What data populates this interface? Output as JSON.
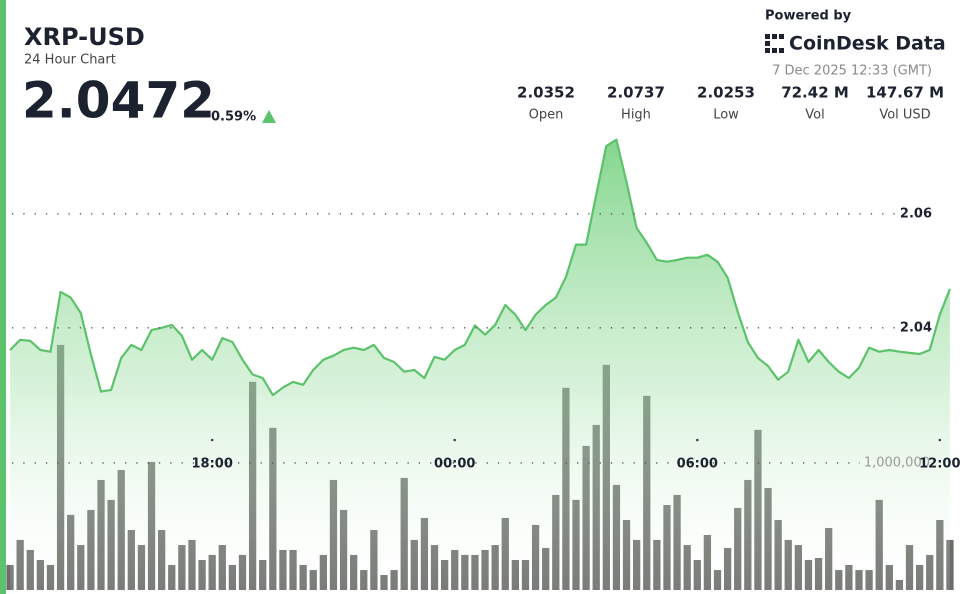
{
  "header": {
    "title": "XRP-USD",
    "subtitle": "24 Hour Chart",
    "price": "2.0472",
    "change": "0.59%",
    "powered_by": "Powered by",
    "brand": "CoinDesk Data",
    "timestamp": "7 Dec 2025 12:33 (GMT)"
  },
  "stats": [
    {
      "value": "2.0352",
      "label": "Open"
    },
    {
      "value": "2.0737",
      "label": "High"
    },
    {
      "value": "2.0253",
      "label": "Low"
    },
    {
      "value": "72.42 M",
      "label": "Vol"
    },
    {
      "value": "147.67 M",
      "label": "Vol USD"
    }
  ],
  "chart_data": {
    "type": "line",
    "categories": [
      null,
      null,
      null,
      null,
      null,
      null,
      null,
      null,
      null,
      null,
      null,
      null,
      null,
      null,
      null,
      null,
      null,
      null,
      null,
      null,
      "18:00",
      null,
      null,
      null,
      null,
      null,
      null,
      null,
      null,
      null,
      null,
      null,
      null,
      null,
      null,
      null,
      null,
      null,
      null,
      null,
      null,
      null,
      null,
      null,
      "00:00",
      null,
      null,
      null,
      null,
      null,
      null,
      null,
      null,
      null,
      null,
      null,
      null,
      null,
      null,
      null,
      null,
      null,
      null,
      null,
      null,
      null,
      null,
      null,
      "06:00",
      null,
      null,
      null,
      null,
      null,
      null,
      null,
      null,
      null,
      null,
      null,
      null,
      null,
      null,
      null,
      null,
      null,
      null,
      null,
      null,
      null,
      null,
      null,
      "12:00",
      null
    ],
    "series": [
      {
        "color": "#5cc26b",
        "values": [
          2.0361,
          2.0379,
          2.0377,
          2.0361,
          2.0358,
          2.0463,
          2.0453,
          2.0426,
          2.0353,
          2.0288,
          2.0291,
          2.0347,
          2.037,
          2.0361,
          2.0396,
          2.04,
          2.0405,
          2.0386,
          2.0344,
          2.0361,
          2.0344,
          2.0382,
          2.0375,
          2.0344,
          2.0318,
          2.0312,
          2.0282,
          2.0295,
          2.0305,
          2.03,
          2.0326,
          2.0344,
          2.0351,
          2.0361,
          2.0365,
          2.0361,
          2.037,
          2.0347,
          2.034,
          2.0323,
          2.0326,
          2.0312,
          2.0349,
          2.0344,
          2.0361,
          2.037,
          2.0404,
          2.0388,
          2.0405,
          2.044,
          2.0423,
          2.0396,
          2.0423,
          2.044,
          2.0453,
          2.0489,
          2.0546,
          2.0546,
          2.0633,
          2.0719,
          2.073,
          2.0656,
          2.0575,
          2.0549,
          2.0519,
          2.0516,
          2.0519,
          2.0523,
          2.0523,
          2.0528,
          2.0516,
          2.0488,
          2.0428,
          2.0375,
          2.0347,
          2.0333,
          2.0309,
          2.0323,
          2.0379,
          2.034,
          2.0361,
          2.034,
          2.0323,
          2.0312,
          2.033,
          2.0365,
          2.0358,
          2.0361,
          2.0358,
          2.0356,
          2.0354,
          2.0361,
          2.0423,
          2.0468
        ]
      },
      {
        "type": "bar",
        "axis": "y2",
        "color": "#5d615c",
        "values": [
          197000,
          394000,
          315000,
          236000,
          197000,
          1929000,
          591000,
          354000,
          630000,
          866000,
          709000,
          945000,
          472000,
          354000,
          1008000,
          472000,
          197000,
          354000,
          394000,
          236000,
          276000,
          354000,
          197000,
          276000,
          1638000,
          236000,
          1276000,
          315000,
          315000,
          197000,
          157000,
          276000,
          866000,
          630000,
          276000,
          157000,
          472000,
          118000,
          157000,
          882000,
          394000,
          567000,
          354000,
          236000,
          315000,
          276000,
          276000,
          315000,
          354000,
          567000,
          236000,
          236000,
          512000,
          331000,
          748000,
          1591000,
          709000,
          1134000,
          1299000,
          1772000,
          827000,
          551000,
          394000,
          1528000,
          394000,
          669000,
          748000,
          354000,
          236000,
          433000,
          157000,
          331000,
          646000,
          866000,
          1260000,
          803000,
          551000,
          394000,
          354000,
          236000,
          252000,
          488000,
          157000,
          197000,
          157000,
          157000,
          709000,
          197000,
          79000,
          354000,
          197000,
          276000,
          551000,
          394000
        ]
      }
    ],
    "ylim": [
      1.994,
      2.0747
    ],
    "yticks": [
      2.04,
      2.06
    ],
    "y2lim": [
      0,
      3620000
    ],
    "y2ticks": [
      {
        "value": 1000000,
        "label": "1,000,000"
      }
    ],
    "grid": true
  }
}
